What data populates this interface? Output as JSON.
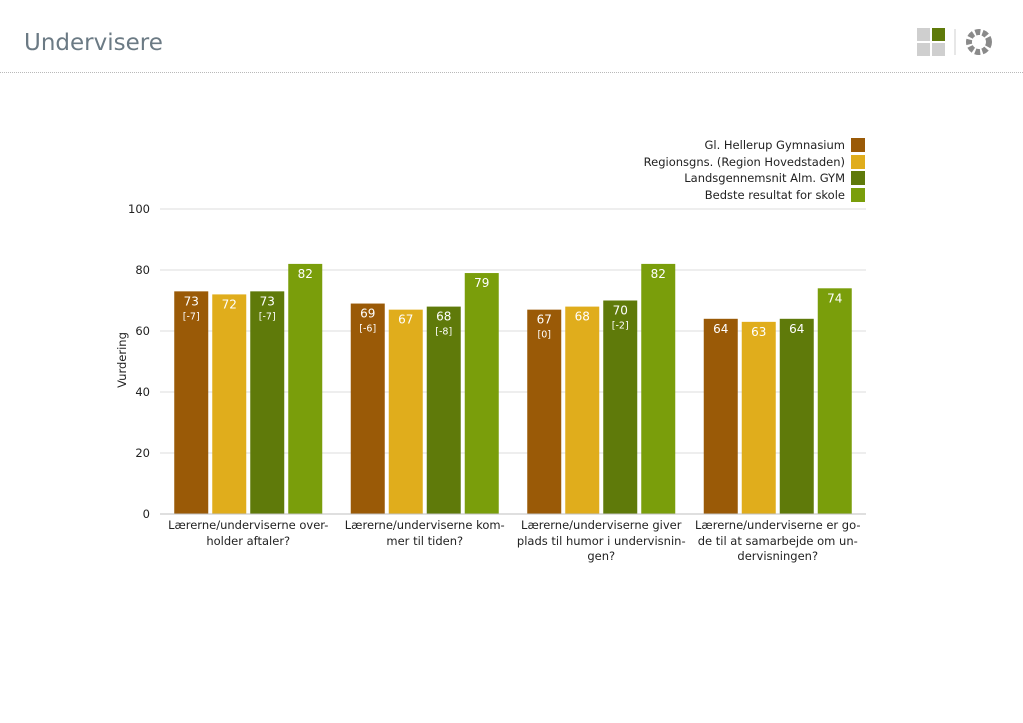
{
  "page": {
    "title": "Undervisere"
  },
  "colors": {
    "gl_hellerup": "#9a5a07",
    "region": "#e0ad1c",
    "lands": "#5f7a0a",
    "bedste": "#7a9e0b",
    "grid": "#dcdcdc",
    "title": "#6b7a84"
  },
  "logo": {
    "icon": "grid-squares-icon",
    "icon2": "circle-segments-icon"
  },
  "chart_data": {
    "type": "bar",
    "title": "",
    "xlabel": "",
    "ylabel": "Vurdering",
    "ylim": [
      0,
      100
    ],
    "yticks": [
      "0",
      "20",
      "40",
      "60",
      "80",
      "100"
    ],
    "grid": true,
    "legend_position": "top-right",
    "categories": [
      [
        "Lærerne/underviserne over-",
        "holder aftaler?"
      ],
      [
        "Lærerne/underviserne kom-",
        "mer til tiden?"
      ],
      [
        "Lærerne/underviserne giver",
        "plads til humor i undervisnin-",
        "gen?"
      ],
      [
        "Lærerne/underviserne er go-",
        "de til at samarbejde om un-",
        "dervisningen?"
      ]
    ],
    "series": [
      {
        "name": "Gl. Hellerup Gymnasium",
        "values": [
          73,
          69,
          67,
          64
        ],
        "sublabels": [
          "[-7]",
          "[-6]",
          "[0]",
          ""
        ],
        "color": "#9a5a07"
      },
      {
        "name": "Regionsgns. (Region Hovedstaden)",
        "values": [
          72,
          67,
          68,
          63
        ],
        "sublabels": [
          "",
          "",
          "",
          ""
        ],
        "color": "#e0ad1c"
      },
      {
        "name": "Landsgennemsnit Alm. GYM",
        "values": [
          73,
          68,
          70,
          64
        ],
        "sublabels": [
          "[-7]",
          "[-8]",
          "[-2]",
          ""
        ],
        "color": "#5f7a0a"
      },
      {
        "name": "Bedste resultat for skole",
        "values": [
          82,
          79,
          82,
          74
        ],
        "sublabels": [
          "",
          "",
          "",
          ""
        ],
        "color": "#7a9e0b"
      }
    ]
  }
}
